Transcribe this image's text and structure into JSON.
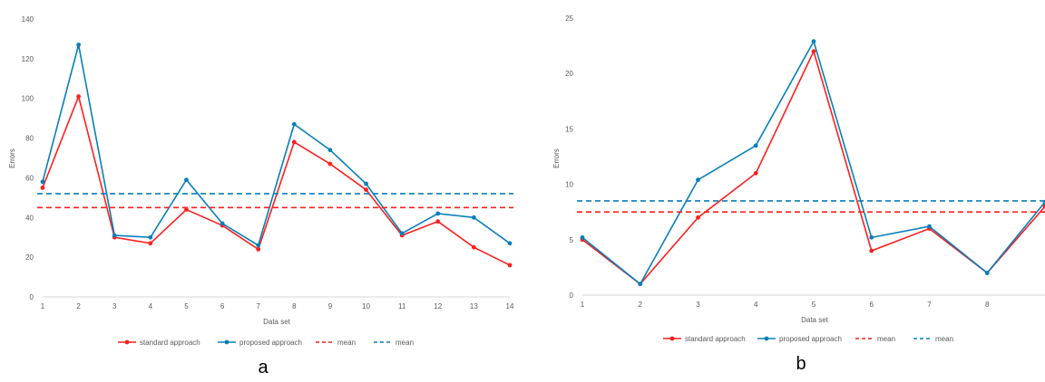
{
  "chart_data": [
    {
      "id": "a",
      "type": "line",
      "panel_label": "a",
      "xlabel": "Data set",
      "ylabel": "Errors",
      "x": [
        1,
        2,
        3,
        4,
        5,
        6,
        7,
        8,
        9,
        10,
        11,
        12,
        13,
        14
      ],
      "ylim": [
        0,
        140
      ],
      "yticks": [
        0,
        20,
        40,
        60,
        80,
        100,
        120,
        140
      ],
      "grid": false,
      "legend_position": "bottom",
      "series": [
        {
          "name": "standard approach",
          "color": "#ff1f1f",
          "style": "solid",
          "values": [
            55,
            101,
            30,
            27,
            44,
            36,
            24,
            78,
            67,
            54,
            31,
            38,
            25,
            16
          ]
        },
        {
          "name": "proposed approach",
          "color": "#0a7fb8",
          "style": "solid",
          "values": [
            58,
            127,
            31,
            30,
            59,
            37,
            26,
            87,
            74,
            57,
            32,
            42,
            40,
            27
          ]
        },
        {
          "name": "mean",
          "color": "#ff1f1f",
          "style": "dashed",
          "values": [
            45,
            45,
            45,
            45,
            45,
            45,
            45,
            45,
            45,
            45,
            45,
            45,
            45,
            45
          ]
        },
        {
          "name": "mean",
          "color": "#0a7fb8",
          "style": "dashed",
          "values": [
            52,
            52,
            52,
            52,
            52,
            52,
            52,
            52,
            52,
            52,
            52,
            52,
            52,
            52
          ]
        }
      ]
    },
    {
      "id": "b",
      "type": "line",
      "panel_label": "b",
      "xlabel": "Data set",
      "ylabel": "Errors",
      "x": [
        1,
        2,
        3,
        4,
        5,
        6,
        7,
        8,
        9
      ],
      "xticks": [
        1,
        2,
        3,
        4,
        5,
        6,
        7,
        8
      ],
      "ylim": [
        0,
        25
      ],
      "yticks": [
        0,
        5,
        10,
        15,
        20,
        25
      ],
      "grid": false,
      "legend_position": "bottom",
      "series": [
        {
          "name": "standard approach",
          "color": "#ff1f1f",
          "style": "solid",
          "values": [
            5,
            1,
            7,
            11,
            22,
            4,
            6,
            2,
            8
          ]
        },
        {
          "name": "proposed approach",
          "color": "#0a7fb8",
          "style": "solid",
          "values": [
            5.2,
            1,
            10.4,
            13.5,
            22.9,
            5.2,
            6.2,
            2,
            8.4
          ]
        },
        {
          "name": "mean",
          "color": "#ff1f1f",
          "style": "dashed",
          "values": [
            7.5,
            7.5,
            7.5,
            7.5,
            7.5,
            7.5,
            7.5,
            7.5,
            7.5
          ]
        },
        {
          "name": "mean",
          "color": "#0a7fb8",
          "style": "dashed",
          "values": [
            8.5,
            8.5,
            8.5,
            8.5,
            8.5,
            8.5,
            8.5,
            8.5,
            8.5
          ]
        }
      ]
    }
  ]
}
